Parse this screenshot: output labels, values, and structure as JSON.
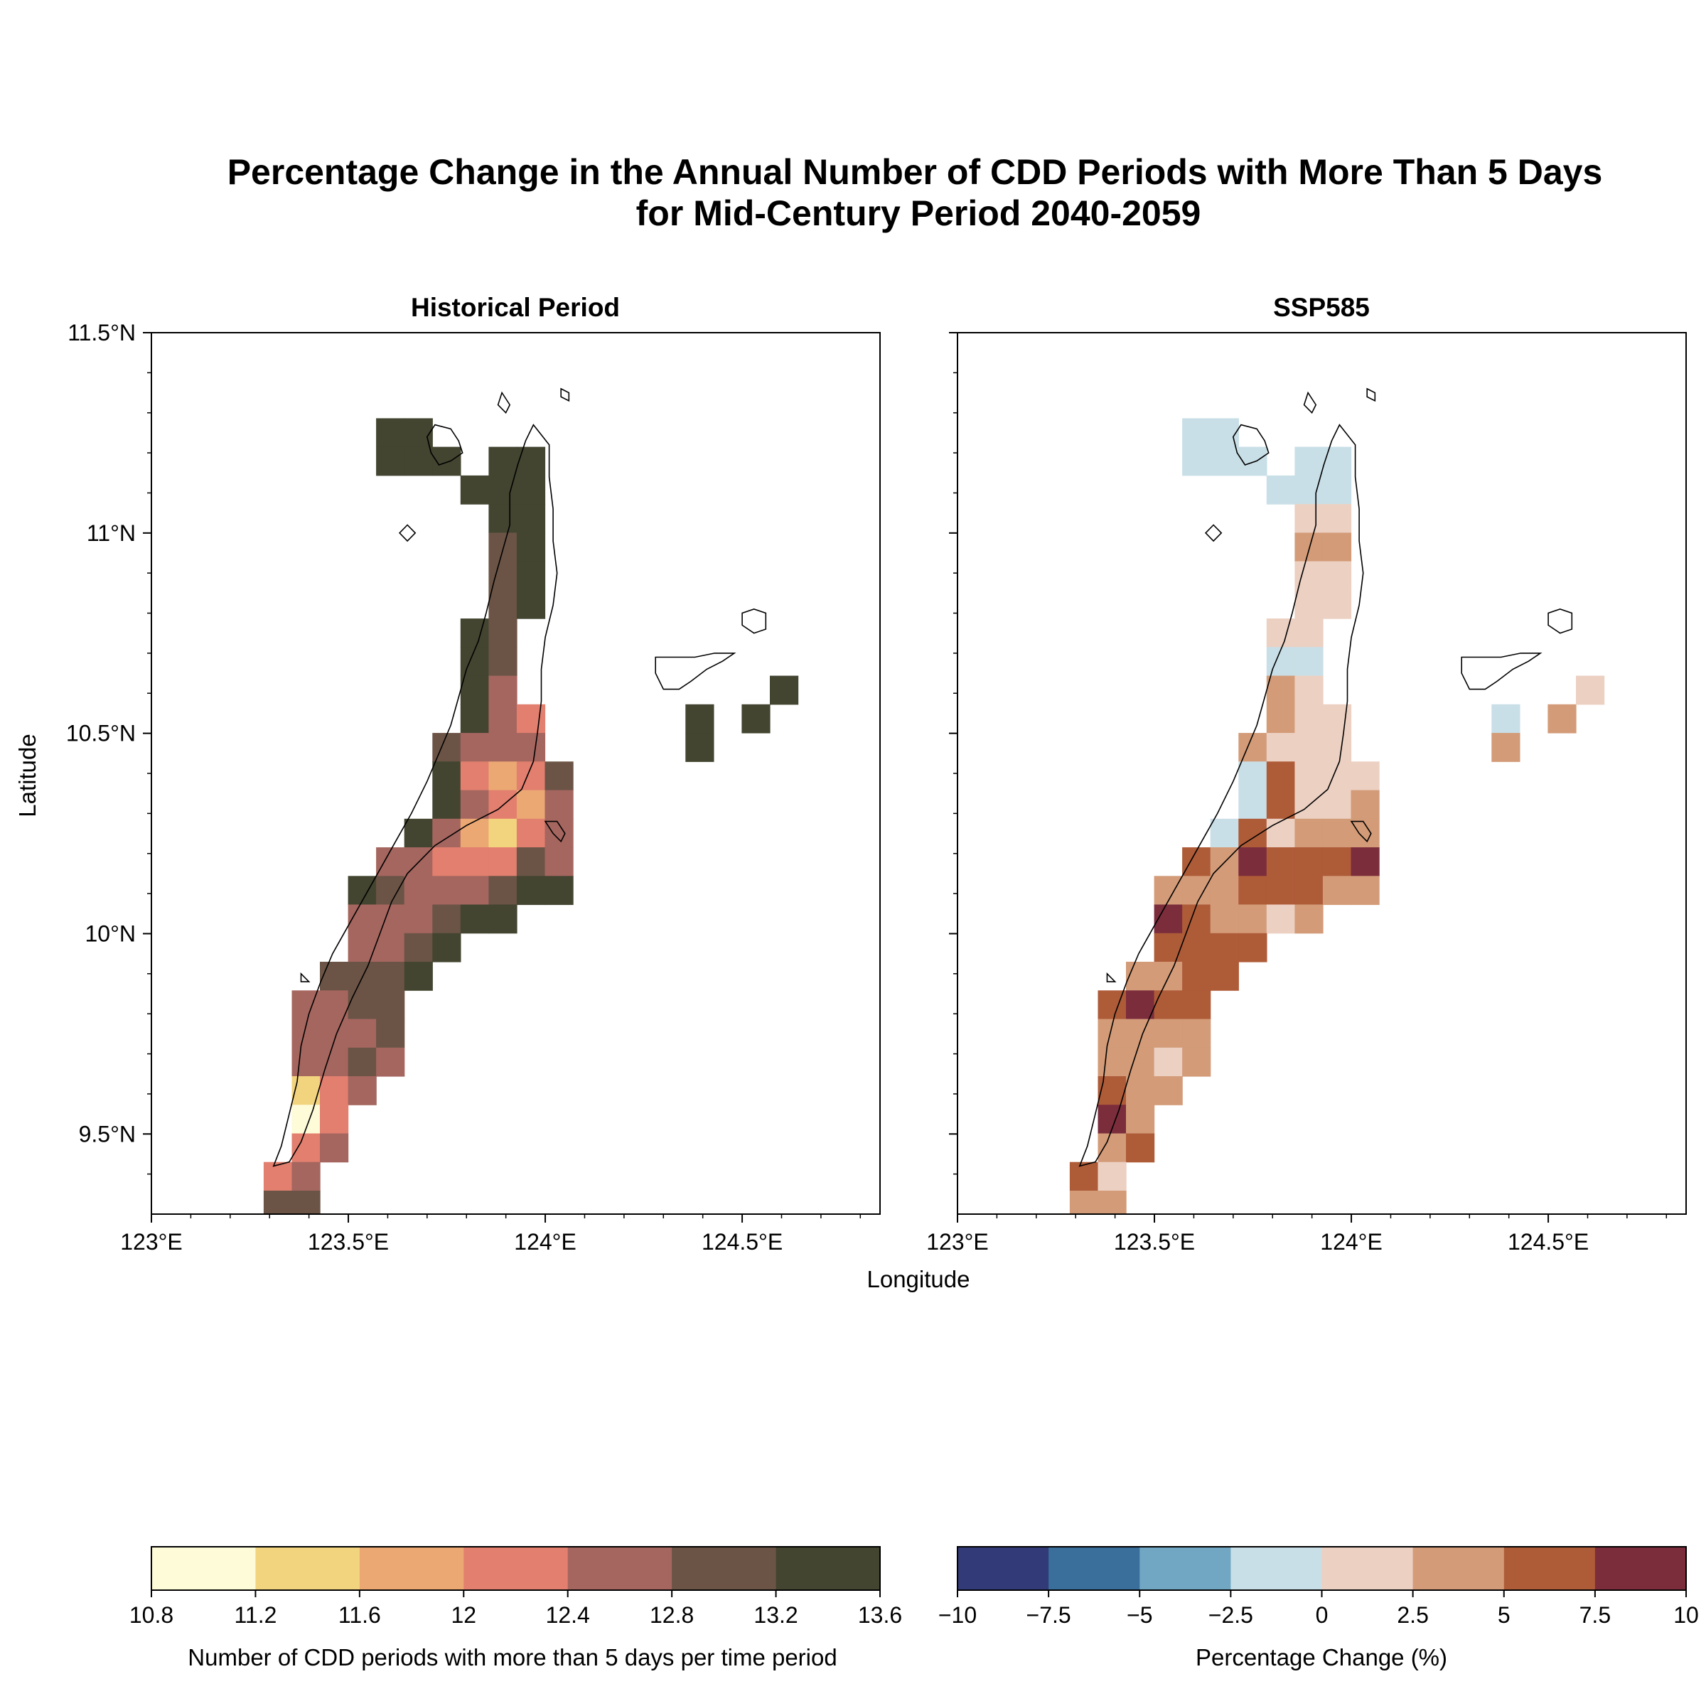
{
  "figure": {
    "title_line1": "Percentage Change in the Annual Number of CDD Periods with More Than 5 Days",
    "title_line2": "for Mid-Century Period 2040-2059",
    "xlabel": "Longitude",
    "ylabel": "Latitude"
  },
  "axes": {
    "lon_range": [
      123.0,
      124.85
    ],
    "lat_range": [
      9.3,
      11.5
    ],
    "lon_ticks": [
      "123°E",
      "123.5°E",
      "124°E",
      "124.5°E"
    ],
    "lon_tick_values": [
      123.0,
      123.5,
      124.0,
      124.5
    ],
    "lat_ticks": [
      "11.5°N",
      "11°N",
      "10.5°N",
      "10°N",
      "9.5°N"
    ],
    "lat_tick_values": [
      11.5,
      11.0,
      10.5,
      10.0,
      9.5
    ]
  },
  "panels": {
    "left_title": "Historical Period",
    "right_title": "SSP585"
  },
  "colorbars": {
    "hist": {
      "label": "Number of CDD periods with more than 5 days per time period",
      "ticks": [
        "10.8",
        "11.2",
        "11.6",
        "12",
        "12.4",
        "12.8",
        "13.2",
        "13.6"
      ],
      "colors": [
        "#fefbd8",
        "#f3d47e",
        "#eba873",
        "#e27f6f",
        "#a5665f",
        "#6b5446",
        "#434530"
      ]
    },
    "change": {
      "label": "Percentage Change (%)",
      "ticks": [
        "−10",
        "−7.5",
        "−5",
        "−2.5",
        "0",
        "2.5",
        "5",
        "7.5",
        "10"
      ],
      "colors": [
        "#323b78",
        "#3a6e9b",
        "#71a7c3",
        "#c9dfe7",
        "#ecd0c2",
        "#d39b78",
        "#ae5b38",
        "#7b2d3c"
      ]
    }
  },
  "chart_data": {
    "type": "heatmap",
    "grid_origin_lon": 123.285,
    "grid_origin_lat": 9.43,
    "cell_size_deg": 0.0714,
    "cells_note": "col, row, historical class index (0-6), change class index (0-7)",
    "cells": [
      [
        4,
        25,
        6,
        3
      ],
      [
        5,
        25,
        6,
        3
      ],
      [
        8,
        24,
        6,
        3
      ],
      [
        9,
        24,
        6,
        3
      ],
      [
        5,
        24,
        6,
        3
      ],
      [
        6,
        24,
        6,
        3
      ],
      [
        4,
        24,
        6,
        3
      ],
      [
        8,
        23,
        6,
        3
      ],
      [
        9,
        23,
        6,
        3
      ],
      [
        7,
        23,
        6,
        3
      ],
      [
        8,
        22,
        6,
        4
      ],
      [
        9,
        22,
        6,
        4
      ],
      [
        8,
        21,
        5,
        5
      ],
      [
        9,
        21,
        6,
        5
      ],
      [
        8,
        20,
        5,
        4
      ],
      [
        9,
        20,
        6,
        4
      ],
      [
        8,
        19,
        5,
        4
      ],
      [
        9,
        19,
        6,
        4
      ],
      [
        7,
        18,
        6,
        4
      ],
      [
        8,
        18,
        5,
        4
      ],
      [
        7,
        17,
        6,
        3
      ],
      [
        8,
        17,
        5,
        3
      ],
      [
        7,
        16,
        6,
        5
      ],
      [
        8,
        16,
        4,
        4
      ],
      [
        7,
        15,
        6,
        5
      ],
      [
        8,
        15,
        4,
        4
      ],
      [
        9,
        15,
        3,
        4
      ],
      [
        6,
        14,
        5,
        5
      ],
      [
        7,
        14,
        4,
        4
      ],
      [
        8,
        14,
        4,
        4
      ],
      [
        9,
        14,
        4,
        4
      ],
      [
        6,
        13,
        6,
        3
      ],
      [
        7,
        13,
        3,
        6
      ],
      [
        8,
        13,
        2,
        4
      ],
      [
        9,
        13,
        3,
        4
      ],
      [
        10,
        13,
        5,
        4
      ],
      [
        6,
        12,
        6,
        3
      ],
      [
        7,
        12,
        4,
        6
      ],
      [
        8,
        12,
        3,
        4
      ],
      [
        9,
        12,
        2,
        4
      ],
      [
        10,
        12,
        4,
        5
      ],
      [
        5,
        11,
        6,
        3
      ],
      [
        6,
        11,
        4,
        6
      ],
      [
        7,
        11,
        2,
        4
      ],
      [
        8,
        11,
        1,
        5
      ],
      [
        9,
        11,
        3,
        5
      ],
      [
        10,
        11,
        4,
        5
      ],
      [
        4,
        10,
        4,
        6
      ],
      [
        5,
        10,
        4,
        5
      ],
      [
        6,
        10,
        3,
        7
      ],
      [
        7,
        10,
        3,
        6
      ],
      [
        8,
        10,
        3,
        6
      ],
      [
        9,
        10,
        5,
        6
      ],
      [
        10,
        10,
        4,
        7
      ],
      [
        3,
        9,
        6,
        5
      ],
      [
        4,
        9,
        5,
        5
      ],
      [
        5,
        9,
        4,
        5
      ],
      [
        6,
        9,
        4,
        6
      ],
      [
        7,
        9,
        4,
        6
      ],
      [
        8,
        9,
        5,
        6
      ],
      [
        9,
        9,
        6,
        5
      ],
      [
        10,
        9,
        6,
        5
      ],
      [
        3,
        8,
        4,
        7
      ],
      [
        4,
        8,
        4,
        6
      ],
      [
        5,
        8,
        4,
        5
      ],
      [
        6,
        8,
        5,
        5
      ],
      [
        7,
        8,
        6,
        4
      ],
      [
        8,
        8,
        6,
        5
      ],
      [
        3,
        7,
        4,
        6
      ],
      [
        4,
        7,
        4,
        6
      ],
      [
        5,
        7,
        5,
        6
      ],
      [
        6,
        7,
        6,
        6
      ],
      [
        2,
        6,
        5,
        5
      ],
      [
        3,
        6,
        5,
        5
      ],
      [
        4,
        6,
        5,
        6
      ],
      [
        5,
        6,
        6,
        6
      ],
      [
        1,
        5,
        4,
        6
      ],
      [
        2,
        5,
        4,
        7
      ],
      [
        3,
        5,
        5,
        6
      ],
      [
        4,
        5,
        5,
        6
      ],
      [
        1,
        4,
        4,
        5
      ],
      [
        2,
        4,
        4,
        5
      ],
      [
        3,
        4,
        4,
        5
      ],
      [
        4,
        4,
        5,
        5
      ],
      [
        1,
        3,
        4,
        5
      ],
      [
        2,
        3,
        4,
        5
      ],
      [
        3,
        3,
        5,
        4
      ],
      [
        4,
        3,
        4,
        5
      ],
      [
        1,
        2,
        1,
        6
      ],
      [
        2,
        2,
        3,
        5
      ],
      [
        3,
        2,
        4,
        5
      ],
      [
        1,
        1,
        0,
        7
      ],
      [
        2,
        1,
        3,
        5
      ],
      [
        1,
        0,
        3,
        5
      ],
      [
        2,
        0,
        4,
        6
      ],
      [
        0,
        -1,
        3,
        6
      ],
      [
        1,
        -1,
        4,
        4
      ],
      [
        0,
        -2,
        5,
        5
      ],
      [
        1,
        -2,
        5,
        5
      ],
      [
        15,
        15,
        6,
        3
      ],
      [
        15,
        14,
        6,
        5
      ],
      [
        17,
        15,
        6,
        5
      ],
      [
        18,
        16,
        6,
        4
      ]
    ]
  }
}
